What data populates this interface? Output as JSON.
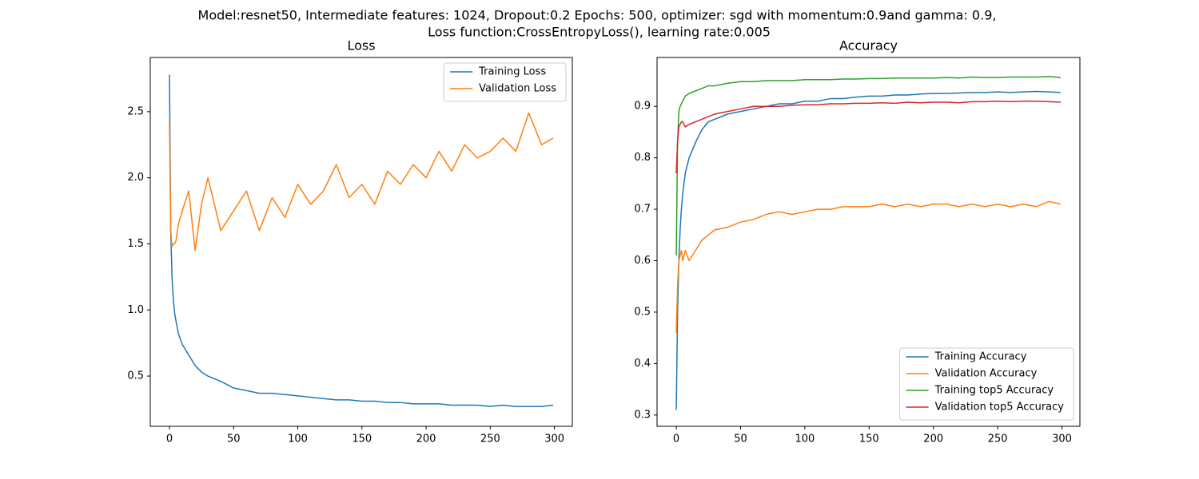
{
  "suptitle": [
    "Model:resnet50, Intermediate features: 1024, Dropout:0.2 Epochs: 500, optimizer: sgd with momentum:0.9and gamma: 0.9,",
    " Loss function:CrossEntropyLoss(), learning rate:0.005"
  ],
  "chart_data": [
    {
      "type": "line",
      "title": "Loss",
      "legend": "upper right",
      "grid": false,
      "xlim": [
        -14.95,
        313.95
      ],
      "xticks": [
        0,
        50,
        100,
        150,
        200,
        250,
        300
      ],
      "ylim": [
        0.12,
        2.91
      ],
      "yticks": [
        0.5,
        {
          "value": 1.0,
          "label": "1.0"
        },
        1.5,
        {
          "value": 2.0,
          "label": "2.0"
        },
        2.5
      ],
      "x": [
        0,
        1,
        2,
        3,
        4,
        5,
        7,
        10,
        15,
        20,
        25,
        30,
        40,
        50,
        60,
        70,
        80,
        90,
        100,
        110,
        120,
        130,
        140,
        150,
        160,
        170,
        180,
        190,
        200,
        210,
        220,
        230,
        240,
        250,
        260,
        270,
        280,
        290,
        299
      ],
      "series": [
        {
          "name": "Training Loss",
          "color": "#1f77b4",
          "values": [
            2.78,
            1.6,
            1.25,
            1.08,
            0.98,
            0.92,
            0.82,
            0.74,
            0.66,
            0.58,
            0.53,
            0.5,
            0.46,
            0.41,
            0.39,
            0.37,
            0.37,
            0.36,
            0.35,
            0.34,
            0.33,
            0.32,
            0.32,
            0.31,
            0.31,
            0.3,
            0.3,
            0.29,
            0.29,
            0.29,
            0.28,
            0.28,
            0.28,
            0.27,
            0.28,
            0.27,
            0.27,
            0.27,
            0.28
          ]
        },
        {
          "name": "Validation Loss",
          "color": "#ff7f0e",
          "values": [
            2.42,
            1.6,
            1.48,
            1.5,
            1.5,
            1.52,
            1.65,
            1.75,
            1.9,
            1.45,
            1.8,
            2.0,
            1.6,
            1.75,
            1.9,
            1.6,
            1.85,
            1.7,
            1.95,
            1.8,
            1.9,
            2.1,
            1.85,
            1.95,
            1.8,
            2.05,
            1.95,
            2.1,
            2.0,
            2.2,
            2.05,
            2.25,
            2.15,
            2.2,
            2.3,
            2.2,
            2.49,
            2.25,
            2.3
          ]
        }
      ]
    },
    {
      "type": "line",
      "title": "Accuracy",
      "legend": "lower right",
      "grid": false,
      "xlim": [
        -14.95,
        313.95
      ],
      "xticks": [
        0,
        50,
        100,
        150,
        200,
        250,
        300
      ],
      "ylim": [
        0.278,
        0.995
      ],
      "yticks": [
        0.3,
        0.4,
        0.5,
        0.6,
        0.7,
        0.8,
        0.9
      ],
      "x": [
        0,
        1,
        2,
        3,
        4,
        5,
        7,
        10,
        15,
        20,
        25,
        30,
        40,
        50,
        60,
        70,
        80,
        90,
        100,
        110,
        120,
        130,
        140,
        150,
        160,
        170,
        180,
        190,
        200,
        210,
        220,
        230,
        240,
        250,
        260,
        270,
        280,
        290,
        299
      ],
      "series": [
        {
          "name": "Training Accuracy",
          "color": "#1f77b4",
          "values": [
            0.31,
            0.5,
            0.6,
            0.66,
            0.7,
            0.73,
            0.77,
            0.8,
            0.83,
            0.855,
            0.87,
            0.875,
            0.885,
            0.89,
            0.895,
            0.9,
            0.905,
            0.905,
            0.91,
            0.91,
            0.915,
            0.915,
            0.918,
            0.92,
            0.92,
            0.922,
            0.922,
            0.924,
            0.925,
            0.925,
            0.926,
            0.927,
            0.927,
            0.928,
            0.927,
            0.928,
            0.929,
            0.928,
            0.927
          ]
        },
        {
          "name": "Validation Accuracy",
          "color": "#ff7f0e",
          "values": [
            0.46,
            0.55,
            0.6,
            0.61,
            0.62,
            0.6,
            0.62,
            0.6,
            0.62,
            0.64,
            0.65,
            0.66,
            0.665,
            0.675,
            0.68,
            0.69,
            0.695,
            0.69,
            0.695,
            0.7,
            0.7,
            0.705,
            0.705,
            0.705,
            0.71,
            0.705,
            0.71,
            0.705,
            0.71,
            0.71,
            0.705,
            0.71,
            0.705,
            0.71,
            0.705,
            0.71,
            0.705,
            0.715,
            0.71
          ]
        },
        {
          "name": "Training top5 Accuracy",
          "color": "#2ca02c",
          "values": [
            0.61,
            0.83,
            0.89,
            0.9,
            0.905,
            0.91,
            0.92,
            0.925,
            0.93,
            0.935,
            0.94,
            0.94,
            0.945,
            0.948,
            0.948,
            0.95,
            0.95,
            0.95,
            0.952,
            0.952,
            0.952,
            0.953,
            0.953,
            0.954,
            0.954,
            0.955,
            0.955,
            0.955,
            0.955,
            0.956,
            0.955,
            0.957,
            0.956,
            0.956,
            0.957,
            0.957,
            0.957,
            0.958,
            0.956
          ]
        },
        {
          "name": "Validation top5 Accuracy",
          "color": "#d62728",
          "values": [
            0.77,
            0.83,
            0.86,
            0.865,
            0.87,
            0.87,
            0.86,
            0.865,
            0.87,
            0.875,
            0.88,
            0.885,
            0.89,
            0.895,
            0.9,
            0.9,
            0.9,
            0.902,
            0.903,
            0.903,
            0.905,
            0.905,
            0.906,
            0.906,
            0.907,
            0.906,
            0.908,
            0.907,
            0.908,
            0.908,
            0.907,
            0.909,
            0.909,
            0.91,
            0.909,
            0.91,
            0.91,
            0.909,
            0.908
          ]
        }
      ]
    }
  ]
}
